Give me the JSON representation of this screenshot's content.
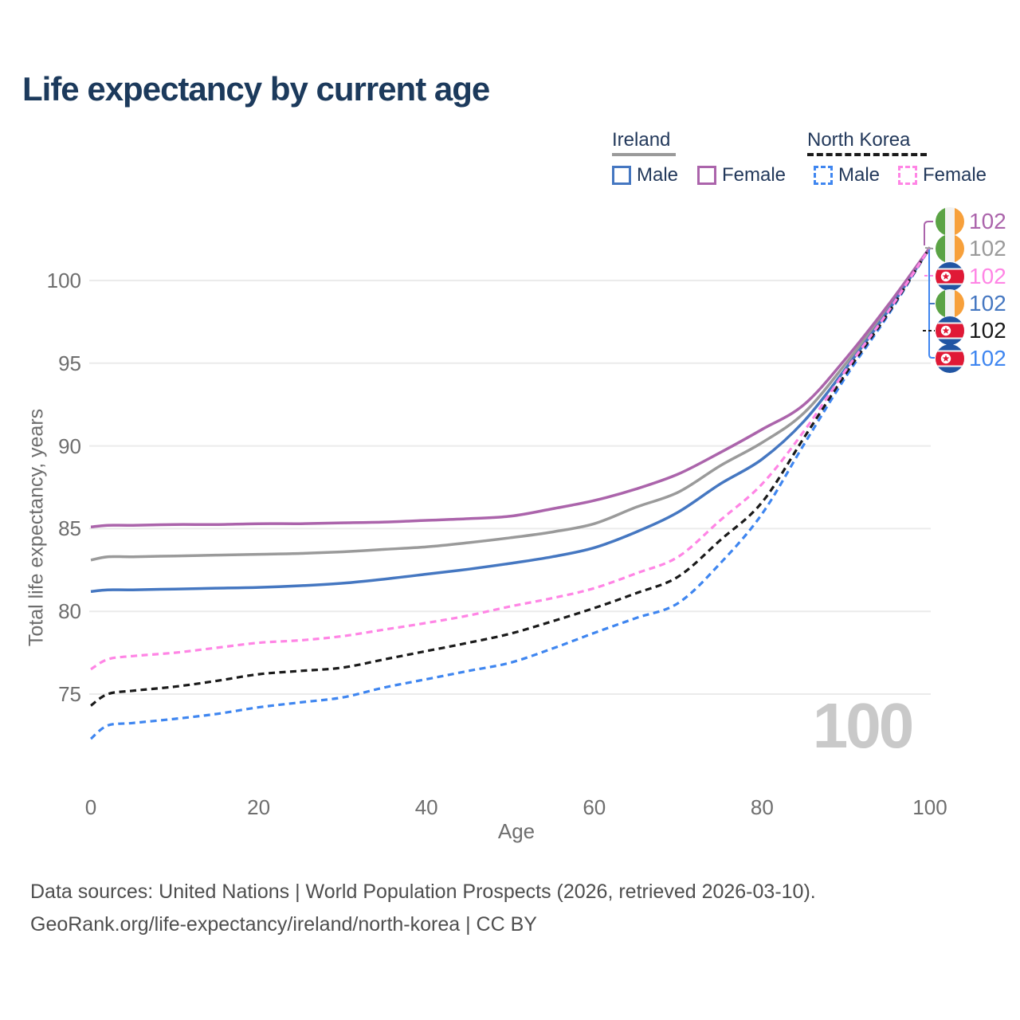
{
  "title": "Life expectancy by current age",
  "legend": {
    "groups": [
      {
        "label": "Ireland",
        "line_color": "#9a9a9a",
        "line_style": "solid"
      },
      {
        "label": "North Korea",
        "line_color": "#1a1a1a",
        "line_style": "dashed"
      }
    ],
    "items": [
      {
        "label": "Male",
        "color": "#4577c1",
        "style": "solid"
      },
      {
        "label": "Female",
        "color": "#ab64ab",
        "style": "solid"
      },
      {
        "label": "Male",
        "color": "#3f86f0",
        "style": "dashed"
      },
      {
        "label": "Female",
        "color": "#ff85e5",
        "style": "dashed"
      }
    ]
  },
  "watermark": "100",
  "footer": {
    "line1": "Data sources: United Nations | World Population Prospects (2026, retrieved 2026-03-10).",
    "line2": "GeoRank.org/life-expectancy/ireland/north-korea | CC BY"
  },
  "chart_data": {
    "type": "line",
    "title": "Life expectancy by current age",
    "xlabel": "Age",
    "ylabel": "Total life expectancy, years",
    "xlim": [
      0,
      100
    ],
    "ylim": [
      71,
      103
    ],
    "x_ticks": [
      0,
      20,
      40,
      60,
      80,
      100
    ],
    "y_ticks": [
      75,
      80,
      85,
      90,
      95,
      100
    ],
    "grid": "horizontal",
    "ages": [
      0,
      2,
      5,
      10,
      15,
      20,
      25,
      30,
      35,
      40,
      45,
      50,
      55,
      60,
      65,
      70,
      75,
      80,
      85,
      90,
      95,
      100
    ],
    "series": [
      {
        "name": "Ireland Both sexes",
        "country": "Ireland",
        "sex": "Both",
        "color": "#9a9a9a",
        "style": "solid",
        "values": [
          83.1,
          83.3,
          83.3,
          83.35,
          83.4,
          83.45,
          83.5,
          83.6,
          83.75,
          83.9,
          84.15,
          84.45,
          84.8,
          85.3,
          86.3,
          87.2,
          88.8,
          90.2,
          92.0,
          95.0,
          98.3,
          102
        ]
      },
      {
        "name": "Ireland Male",
        "country": "Ireland",
        "sex": "Male",
        "color": "#4577c1",
        "style": "solid",
        "values": [
          81.2,
          81.3,
          81.3,
          81.35,
          81.4,
          81.45,
          81.55,
          81.7,
          81.95,
          82.25,
          82.55,
          82.9,
          83.3,
          83.85,
          84.8,
          86.0,
          87.7,
          89.2,
          91.5,
          94.7,
          98.15,
          102
        ]
      },
      {
        "name": "Ireland Female",
        "country": "Ireland",
        "sex": "Female",
        "color": "#ab64ab",
        "style": "solid",
        "values": [
          85.1,
          85.2,
          85.2,
          85.25,
          85.25,
          85.3,
          85.3,
          85.35,
          85.4,
          85.5,
          85.6,
          85.75,
          86.2,
          86.7,
          87.4,
          88.3,
          89.6,
          91.0,
          92.5,
          95.3,
          98.5,
          102
        ]
      },
      {
        "name": "North Korea Male",
        "country": "North Korea",
        "sex": "Male",
        "color": "#3f86f0",
        "style": "dashed",
        "values": [
          72.3,
          73.1,
          73.25,
          73.5,
          73.8,
          74.2,
          74.5,
          74.8,
          75.4,
          75.9,
          76.4,
          76.9,
          77.75,
          78.7,
          79.6,
          80.5,
          82.9,
          85.9,
          90.1,
          94.2,
          97.9,
          102
        ]
      },
      {
        "name": "North Korea Both sexes",
        "country": "North Korea",
        "sex": "Both",
        "color": "#1a1a1a",
        "style": "dashed",
        "values": [
          74.3,
          75.0,
          75.2,
          75.45,
          75.8,
          76.2,
          76.4,
          76.6,
          77.1,
          77.6,
          78.1,
          78.65,
          79.4,
          80.2,
          81.1,
          82.1,
          84.3,
          86.6,
          90.5,
          94.4,
          98.0,
          102
        ]
      },
      {
        "name": "North Korea Female",
        "country": "North Korea",
        "sex": "Female",
        "color": "#ff85e5",
        "style": "dashed",
        "values": [
          76.5,
          77.1,
          77.3,
          77.5,
          77.8,
          78.1,
          78.25,
          78.5,
          78.9,
          79.3,
          79.75,
          80.3,
          80.8,
          81.4,
          82.3,
          83.3,
          85.5,
          87.7,
          90.9,
          94.6,
          98.1,
          102
        ]
      }
    ],
    "end_labels": [
      {
        "flag": "ireland",
        "series": "Ireland Female",
        "value": "102",
        "color": "#ab64ab"
      },
      {
        "flag": "ireland",
        "series": "Ireland Both sexes",
        "value": "102",
        "color": "#9a9a9a"
      },
      {
        "flag": "north-korea",
        "series": "North Korea Female",
        "value": "102",
        "color": "#ff85e5"
      },
      {
        "flag": "ireland",
        "series": "Ireland Male",
        "value": "102",
        "color": "#4577c1"
      },
      {
        "flag": "north-korea",
        "series": "North Korea Both sexes",
        "value": "102",
        "color": "#1a1a1a"
      },
      {
        "flag": "north-korea",
        "series": "North Korea Male",
        "value": "102",
        "color": "#3f86f0"
      }
    ]
  }
}
